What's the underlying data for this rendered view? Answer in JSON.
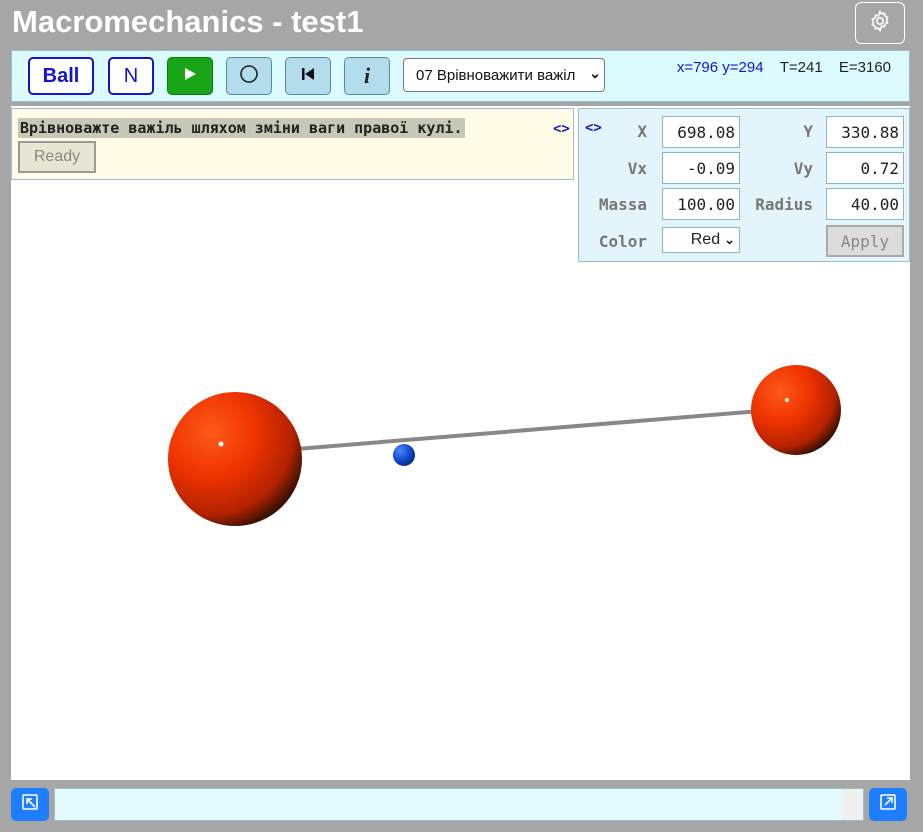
{
  "app": {
    "title": "Macromechanics - test1"
  },
  "toolbar": {
    "ball_label": "Ball",
    "n_label": "N",
    "play_icon": "play-icon",
    "circle_icon": "circle-icon",
    "reset_icon": "skip-back-icon",
    "info_label": "i",
    "scenario_selected": "07 Врівноважити важіл",
    "coords": "x=796 y=294",
    "time": "T=241",
    "energy": "E=3160"
  },
  "task": {
    "text": "Врівноважте важіль шляхом зміни ваги правої кулі.",
    "ready_label": "Ready",
    "toggle": "<>"
  },
  "properties": {
    "toggle": "<>",
    "x_label": "X",
    "x_value": "698.08",
    "y_label": "Y",
    "y_value": "330.88",
    "vx_label": "Vx",
    "vx_value": "-0.09",
    "vy_label": "Vy",
    "vy_value": "0.72",
    "mass_label": "Massa",
    "mass_value": "100.00",
    "radius_label": "Radius",
    "radius_value": "40.00",
    "color_label": "Color",
    "color_value": "Red",
    "apply_label": "Apply"
  },
  "scene": {
    "left_ball_color": "#e82e00",
    "right_ball_color": "#e82e00",
    "pivot_color": "#1048d0",
    "lever_color": "#888888"
  },
  "bottom": {
    "command_value": ""
  },
  "colors": {
    "accent": "#1414d2",
    "play": "#18a618",
    "toolbar_bg": "#dbfbff"
  }
}
